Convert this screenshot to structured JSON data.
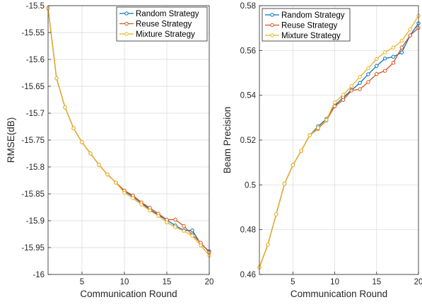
{
  "chart_data": [
    {
      "type": "line",
      "ylabel": "RMSE(dB)",
      "xlabel": "Communication Round",
      "xlim": [
        1,
        20
      ],
      "ylim": [
        -16,
        -15.5
      ],
      "xticks": [
        5,
        10,
        15,
        20
      ],
      "xtick_labels": [
        "5",
        "10",
        "15",
        "20"
      ],
      "yticks": [
        -16,
        -15.95,
        -15.9,
        -15.85,
        -15.8,
        -15.75,
        -15.7,
        -15.65,
        -15.6,
        -15.55,
        -15.5
      ],
      "ytick_labels": [
        "-16",
        "-15.95",
        "-15.9",
        "-15.85",
        "-15.8",
        "-15.75",
        "-15.7",
        "-15.65",
        "-15.6",
        "-15.55",
        "-15.5"
      ],
      "grid": true,
      "legend_position": "top-right",
      "x": [
        1,
        2,
        3,
        4,
        5,
        6,
        7,
        8,
        9,
        10,
        11,
        12,
        13,
        14,
        15,
        16,
        17,
        18,
        19,
        20
      ],
      "series": [
        {
          "name": "Random Strategy",
          "color": "#0072BD",
          "values": [
            -15.505,
            -15.635,
            -15.689,
            -15.728,
            -15.754,
            -15.775,
            -15.796,
            -15.814,
            -15.829,
            -15.845,
            -15.855,
            -15.867,
            -15.879,
            -15.889,
            -15.899,
            -15.909,
            -15.918,
            -15.918,
            -15.943,
            -15.957
          ]
        },
        {
          "name": "Reuse Strategy",
          "color": "#D95319",
          "values": [
            -15.505,
            -15.635,
            -15.689,
            -15.728,
            -15.754,
            -15.775,
            -15.796,
            -15.814,
            -15.829,
            -15.844,
            -15.853,
            -15.866,
            -15.876,
            -15.887,
            -15.898,
            -15.898,
            -15.91,
            -15.926,
            -15.941,
            -15.959
          ]
        },
        {
          "name": "Mixture Strategy",
          "color": "#EDB120",
          "values": [
            -15.505,
            -15.635,
            -15.689,
            -15.728,
            -15.754,
            -15.775,
            -15.796,
            -15.814,
            -15.829,
            -15.848,
            -15.858,
            -15.87,
            -15.881,
            -15.891,
            -15.903,
            -15.912,
            -15.919,
            -15.928,
            -15.946,
            -15.965
          ]
        }
      ]
    },
    {
      "type": "line",
      "ylabel": "Beam Precision",
      "xlabel": "Communication Round",
      "xlim": [
        1,
        20
      ],
      "ylim": [
        0.46,
        0.58
      ],
      "xticks": [
        5,
        10,
        15,
        20
      ],
      "xtick_labels": [
        "5",
        "10",
        "15",
        "20"
      ],
      "yticks": [
        0.46,
        0.48,
        0.5,
        0.52,
        0.54,
        0.56,
        0.58
      ],
      "ytick_labels": [
        "0.46",
        "0.48",
        "0.5",
        "0.52",
        "0.54",
        "0.56",
        "0.58"
      ],
      "grid": true,
      "legend_position": "top-left",
      "x": [
        1,
        2,
        3,
        4,
        5,
        6,
        7,
        8,
        9,
        10,
        11,
        12,
        13,
        14,
        15,
        16,
        17,
        18,
        19,
        20
      ],
      "series": [
        {
          "name": "Random Strategy",
          "color": "#0072BD",
          "values": [
            0.4632,
            0.4733,
            0.4868,
            0.5005,
            0.5088,
            0.5152,
            0.5221,
            0.5261,
            0.5294,
            0.5354,
            0.539,
            0.5423,
            0.5455,
            0.5494,
            0.5531,
            0.5564,
            0.5572,
            0.5591,
            0.5667,
            0.5721
          ]
        },
        {
          "name": "Reuse Strategy",
          "color": "#D95319",
          "values": [
            0.4632,
            0.4733,
            0.4868,
            0.5005,
            0.5088,
            0.5152,
            0.5221,
            0.525,
            0.5288,
            0.5351,
            0.5379,
            0.5421,
            0.5427,
            0.5459,
            0.5495,
            0.5509,
            0.5545,
            0.5613,
            0.5667,
            0.5701
          ]
        },
        {
          "name": "Mixture Strategy",
          "color": "#EDB120",
          "values": [
            0.4632,
            0.4733,
            0.4868,
            0.5005,
            0.5088,
            0.5152,
            0.5221,
            0.5254,
            0.529,
            0.5368,
            0.5402,
            0.5441,
            0.5482,
            0.5521,
            0.5562,
            0.5592,
            0.5613,
            0.5643,
            0.5694,
            0.5755
          ]
        }
      ]
    }
  ]
}
